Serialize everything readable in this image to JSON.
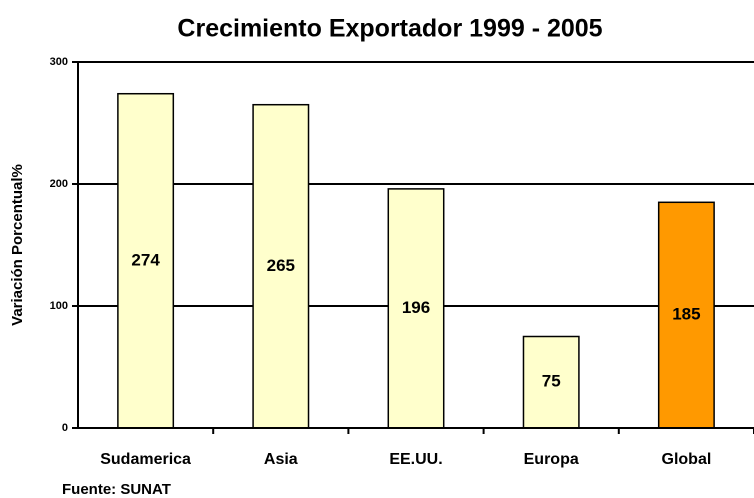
{
  "chart_data": {
    "type": "bar",
    "title": "Crecimiento Exportador 1999 - 2005",
    "y_label": "Variación Porcentual%",
    "source": "Fuente: SUNAT",
    "categories": [
      "Sudamerica",
      "Asia",
      "EE.UU.",
      "Europa",
      "Global"
    ],
    "values": [
      274,
      265,
      196,
      75,
      185
    ],
    "colors": [
      "#ffffcc",
      "#ffffcc",
      "#ffffcc",
      "#ffffcc",
      "#ff9900"
    ],
    "ylim": [
      0,
      300
    ],
    "yticks": [
      0,
      100,
      200,
      300
    ],
    "grid": true
  }
}
